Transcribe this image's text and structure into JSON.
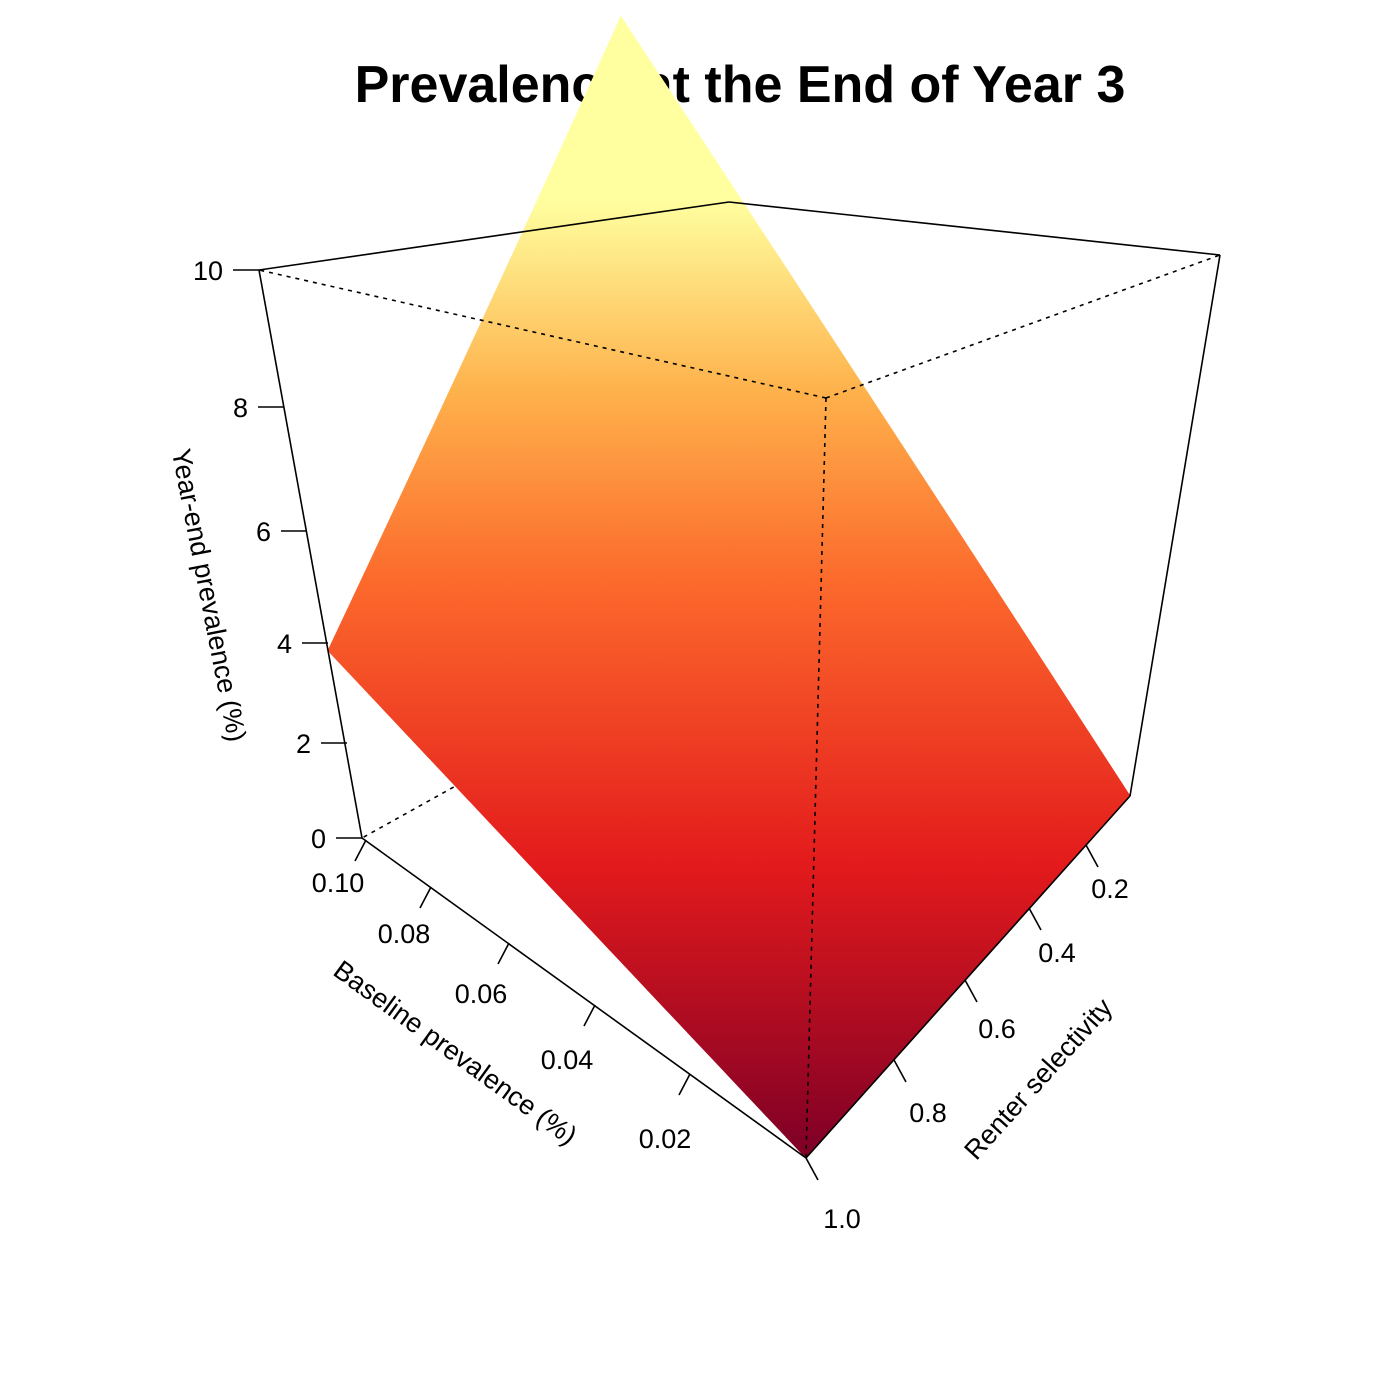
{
  "chart_data": {
    "type": "surface",
    "title": "Prevalence at the End of Year 3",
    "xlabel": "Baseline prevalence (%)",
    "ylabel": "Renter selectivity",
    "zlabel": "Year-end prevalence (%)",
    "xlim": [
      0,
      0.1
    ],
    "ylim": [
      0,
      1.0
    ],
    "zlim": [
      0,
      10
    ],
    "x_ticks": [
      "0.10",
      "0.08",
      "0.06",
      "0.04",
      "0.02"
    ],
    "y_ticks": [
      "0.2",
      "0.4",
      "0.6",
      "0.8",
      "1.0"
    ],
    "z_ticks": [
      "0",
      "2",
      "4",
      "6",
      "8",
      "10"
    ],
    "corner_values": [
      {
        "baseline_prevalence": 0.1,
        "renter_selectivity": 0.0,
        "year_end_prevalence": 10.5
      },
      {
        "baseline_prevalence": 0.1,
        "renter_selectivity": 1.0,
        "year_end_prevalence": 3.3
      },
      {
        "baseline_prevalence": 0.0,
        "renter_selectivity": 0.0,
        "year_end_prevalence": 0.0
      },
      {
        "baseline_prevalence": 0.0,
        "renter_selectivity": 1.0,
        "year_end_prevalence": 0.0
      }
    ],
    "colormap": [
      "#800026",
      "#e31a1c",
      "#fd8d3c",
      "#feb24c",
      "#ffffa0"
    ]
  }
}
